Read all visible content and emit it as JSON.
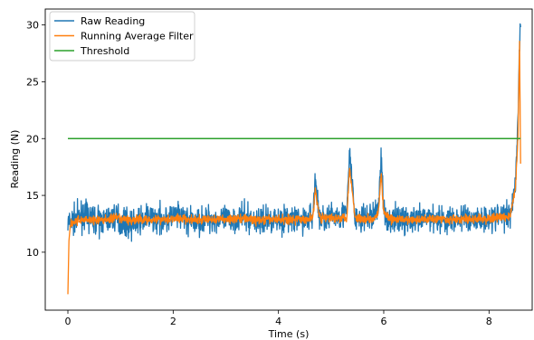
{
  "chart_data": {
    "type": "line",
    "xlabel": "Time (s)",
    "ylabel": "Reading (N)",
    "xlim": [
      -0.43,
      8.82
    ],
    "ylim": [
      4.9,
      31.4
    ],
    "xticks": [
      0,
      2,
      4,
      6,
      8
    ],
    "yticks": [
      10,
      15,
      20,
      25,
      30
    ],
    "grid": false,
    "legend_position": "top-left",
    "series": [
      {
        "name": "Raw Reading",
        "color": "#1f77b4",
        "x": [
          0,
          0.3,
          0.6,
          0.9,
          1.2,
          1.5,
          1.8,
          2.1,
          2.4,
          2.7,
          3.0,
          3.3,
          3.6,
          3.9,
          4.2,
          4.5,
          4.65,
          4.7,
          4.75,
          4.8,
          5.0,
          5.3,
          5.35,
          5.4,
          5.45,
          5.6,
          5.8,
          5.9,
          5.95,
          6.0,
          6.1,
          6.3,
          6.6,
          6.9,
          7.2,
          7.5,
          7.8,
          8.1,
          8.4,
          8.5,
          8.55,
          8.58,
          8.6
        ],
        "values": [
          12.5,
          13.3,
          12.7,
          13.1,
          12.4,
          13.0,
          12.9,
          13.2,
          12.6,
          13.0,
          12.8,
          13.1,
          12.7,
          13.0,
          12.9,
          12.8,
          13.2,
          16.5,
          14.0,
          12.9,
          13.1,
          13.4,
          18.8,
          16.0,
          13.0,
          12.9,
          13.2,
          14.0,
          18.5,
          13.5,
          12.8,
          13.0,
          12.7,
          13.1,
          12.8,
          13.0,
          12.9,
          13.1,
          13.4,
          16.0,
          22.0,
          28.5,
          30.0
        ]
      },
      {
        "name": "Running Average Filter",
        "color": "#ff7f0e",
        "x": [
          0,
          0.02,
          0.05,
          0.3,
          0.6,
          0.9,
          1.2,
          1.5,
          1.8,
          2.1,
          2.4,
          2.7,
          3.0,
          3.3,
          3.6,
          3.9,
          4.2,
          4.5,
          4.65,
          4.7,
          4.75,
          4.8,
          5.0,
          5.3,
          5.35,
          5.4,
          5.45,
          5.6,
          5.8,
          5.9,
          5.95,
          6.0,
          6.1,
          6.3,
          6.6,
          6.9,
          7.2,
          7.5,
          7.8,
          8.1,
          8.4,
          8.5,
          8.55,
          8.58,
          8.6
        ],
        "values": [
          6.3,
          11.0,
          12.6,
          12.9,
          12.8,
          13.0,
          12.8,
          12.9,
          12.9,
          13.0,
          12.8,
          12.9,
          12.9,
          13.0,
          12.8,
          12.9,
          12.9,
          12.9,
          13.0,
          15.5,
          14.0,
          13.0,
          13.0,
          13.1,
          17.5,
          15.5,
          13.1,
          12.9,
          13.0,
          13.5,
          17.0,
          13.5,
          12.9,
          12.9,
          12.8,
          13.0,
          12.9,
          12.9,
          12.9,
          13.0,
          13.2,
          15.5,
          20.0,
          28.5,
          17.5
        ]
      },
      {
        "name": "Threshold",
        "color": "#2ca02c",
        "x": [
          0,
          8.6
        ],
        "values": [
          20,
          20
        ]
      }
    ]
  }
}
